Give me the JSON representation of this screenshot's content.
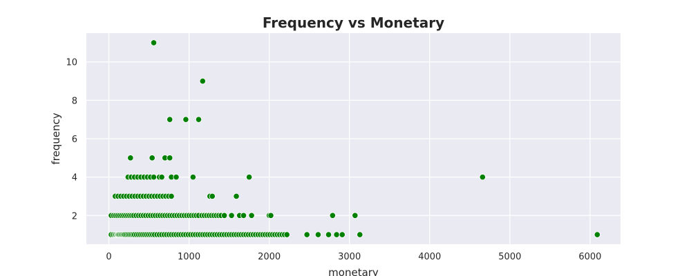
{
  "chart_data": {
    "type": "scatter",
    "title": "Frequency vs Monetary",
    "xlabel": "monetary",
    "ylabel": "frequency",
    "xlim": [
      -280,
      6380
    ],
    "ylim": [
      0.5,
      11.5
    ],
    "x_ticks": [
      0,
      1000,
      2000,
      3000,
      4000,
      5000,
      6000
    ],
    "y_ticks": [
      2,
      4,
      6,
      8,
      10
    ],
    "grid": true,
    "legend": "none",
    "colors": {
      "point": "#008000",
      "background": "#eaeaf2",
      "grid": "#ffffff"
    },
    "series": [
      {
        "points": [
          [
            30,
            1
          ],
          [
            55,
            1
          ],
          [
            75,
            1
          ],
          [
            90,
            1
          ],
          [
            105,
            1
          ],
          [
            115,
            1
          ],
          [
            125,
            1
          ],
          [
            140,
            1
          ],
          [
            155,
            1
          ],
          [
            170,
            1
          ],
          [
            185,
            1
          ],
          [
            200,
            1
          ],
          [
            220,
            1
          ],
          [
            240,
            1
          ],
          [
            260,
            1
          ],
          [
            280,
            1
          ],
          [
            300,
            1
          ],
          [
            320,
            1
          ],
          [
            345,
            1
          ],
          [
            370,
            1
          ],
          [
            395,
            1
          ],
          [
            420,
            1
          ],
          [
            445,
            1
          ],
          [
            470,
            1
          ],
          [
            495,
            1
          ],
          [
            520,
            1
          ],
          [
            545,
            1
          ],
          [
            570,
            1
          ],
          [
            600,
            1
          ],
          [
            630,
            1
          ],
          [
            660,
            1
          ],
          [
            690,
            1
          ],
          [
            720,
            1
          ],
          [
            750,
            1
          ],
          [
            780,
            1
          ],
          [
            810,
            1
          ],
          [
            840,
            1
          ],
          [
            870,
            1
          ],
          [
            900,
            1
          ],
          [
            930,
            1
          ],
          [
            960,
            1
          ],
          [
            990,
            1
          ],
          [
            1020,
            1
          ],
          [
            1050,
            1
          ],
          [
            1080,
            1
          ],
          [
            1110,
            1
          ],
          [
            1140,
            1
          ],
          [
            1170,
            1
          ],
          [
            1200,
            1
          ],
          [
            1230,
            1
          ],
          [
            1260,
            1
          ],
          [
            1290,
            1
          ],
          [
            1320,
            1
          ],
          [
            1350,
            1
          ],
          [
            1380,
            1
          ],
          [
            1410,
            1
          ],
          [
            1440,
            1
          ],
          [
            1470,
            1
          ],
          [
            1500,
            1
          ],
          [
            1530,
            1
          ],
          [
            1560,
            1
          ],
          [
            1590,
            1
          ],
          [
            1620,
            1
          ],
          [
            1650,
            1
          ],
          [
            1680,
            1
          ],
          [
            1710,
            1
          ],
          [
            1740,
            1
          ],
          [
            1770,
            1
          ],
          [
            1800,
            1
          ],
          [
            1830,
            1
          ],
          [
            1860,
            1
          ],
          [
            1890,
            1
          ],
          [
            1920,
            1
          ],
          [
            1950,
            1
          ],
          [
            1980,
            1
          ],
          [
            2010,
            1
          ],
          [
            2040,
            1
          ],
          [
            2070,
            1
          ],
          [
            2100,
            1
          ],
          [
            2130,
            1
          ],
          [
            2160,
            1
          ],
          [
            2190,
            1
          ],
          [
            2220,
            1
          ],
          [
            2470,
            1
          ],
          [
            2610,
            1
          ],
          [
            2740,
            1
          ],
          [
            2840,
            1
          ],
          [
            2910,
            1
          ],
          [
            3130,
            1
          ],
          [
            6090,
            1
          ],
          [
            30,
            2
          ],
          [
            60,
            2
          ],
          [
            85,
            2
          ],
          [
            110,
            2
          ],
          [
            135,
            2
          ],
          [
            160,
            2
          ],
          [
            185,
            2
          ],
          [
            210,
            2
          ],
          [
            235,
            2
          ],
          [
            260,
            2
          ],
          [
            285,
            2
          ],
          [
            310,
            2
          ],
          [
            340,
            2
          ],
          [
            370,
            2
          ],
          [
            400,
            2
          ],
          [
            430,
            2
          ],
          [
            460,
            2
          ],
          [
            490,
            2
          ],
          [
            520,
            2
          ],
          [
            550,
            2
          ],
          [
            580,
            2
          ],
          [
            610,
            2
          ],
          [
            640,
            2
          ],
          [
            670,
            2
          ],
          [
            700,
            2
          ],
          [
            730,
            2
          ],
          [
            760,
            2
          ],
          [
            790,
            2
          ],
          [
            820,
            2
          ],
          [
            850,
            2
          ],
          [
            880,
            2
          ],
          [
            910,
            2
          ],
          [
            940,
            2
          ],
          [
            970,
            2
          ],
          [
            1000,
            2
          ],
          [
            1030,
            2
          ],
          [
            1060,
            2
          ],
          [
            1090,
            2
          ],
          [
            1120,
            2
          ],
          [
            1160,
            2
          ],
          [
            1190,
            2
          ],
          [
            1220,
            2
          ],
          [
            1250,
            2
          ],
          [
            1280,
            2
          ],
          [
            1310,
            2
          ],
          [
            1340,
            2
          ],
          [
            1370,
            2
          ],
          [
            1400,
            2
          ],
          [
            1440,
            2
          ],
          [
            1530,
            2
          ],
          [
            1630,
            2
          ],
          [
            1680,
            2
          ],
          [
            1780,
            2
          ],
          [
            2000,
            2
          ],
          [
            2020,
            2
          ],
          [
            2790,
            2
          ],
          [
            3070,
            2
          ],
          [
            80,
            3
          ],
          [
            115,
            3
          ],
          [
            150,
            3
          ],
          [
            185,
            3
          ],
          [
            220,
            3
          ],
          [
            255,
            3
          ],
          [
            290,
            3
          ],
          [
            325,
            3
          ],
          [
            360,
            3
          ],
          [
            395,
            3
          ],
          [
            430,
            3
          ],
          [
            465,
            3
          ],
          [
            500,
            3
          ],
          [
            535,
            3
          ],
          [
            570,
            3
          ],
          [
            605,
            3
          ],
          [
            640,
            3
          ],
          [
            675,
            3
          ],
          [
            710,
            3
          ],
          [
            745,
            3
          ],
          [
            780,
            3
          ],
          [
            1260,
            3
          ],
          [
            1290,
            3
          ],
          [
            1590,
            3
          ],
          [
            240,
            4
          ],
          [
            280,
            4
          ],
          [
            320,
            4
          ],
          [
            360,
            4
          ],
          [
            400,
            4
          ],
          [
            440,
            4
          ],
          [
            480,
            4
          ],
          [
            520,
            4
          ],
          [
            560,
            4
          ],
          [
            630,
            4
          ],
          [
            660,
            4
          ],
          [
            780,
            4
          ],
          [
            840,
            4
          ],
          [
            1050,
            4
          ],
          [
            1750,
            4
          ],
          [
            4660,
            4
          ],
          [
            270,
            5
          ],
          [
            540,
            5
          ],
          [
            700,
            5
          ],
          [
            760,
            5
          ],
          [
            760,
            7
          ],
          [
            960,
            7
          ],
          [
            1120,
            7
          ],
          [
            1170,
            9
          ],
          [
            560,
            11
          ]
        ]
      }
    ]
  }
}
